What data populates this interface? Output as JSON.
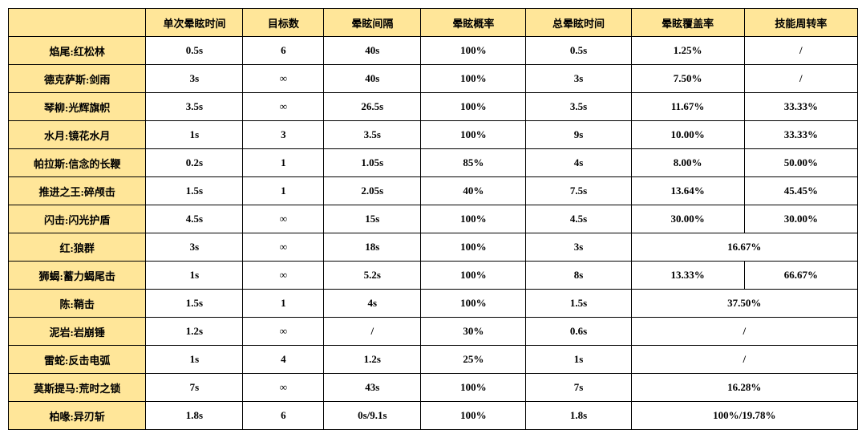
{
  "table": {
    "columns": [
      "",
      "单次晕眩时间",
      "目标数",
      "晕眩间隔",
      "晕眩概率",
      "总晕眩时间",
      "晕眩覆盖率",
      "技能周转率"
    ],
    "rows": [
      {
        "label": "焰尾:红松林",
        "cells": [
          "0.5s",
          "6",
          "40s",
          "100%",
          "0.5s",
          "1.25%",
          "/"
        ]
      },
      {
        "label": "德克萨斯:剑雨",
        "cells": [
          "3s",
          "∞",
          "40s",
          "100%",
          "3s",
          "7.50%",
          "/"
        ]
      },
      {
        "label": "琴柳:光辉旗帜",
        "cells": [
          "3.5s",
          "∞",
          "26.5s",
          "100%",
          "3.5s",
          "11.67%",
          "33.33%"
        ]
      },
      {
        "label": "水月:镜花水月",
        "cells": [
          "1s",
          "3",
          "3.5s",
          "100%",
          "9s",
          "10.00%",
          "33.33%"
        ]
      },
      {
        "label": "帕拉斯:信念的长鞭",
        "cells": [
          "0.2s",
          "1",
          "1.05s",
          "85%",
          "4s",
          "8.00%",
          "50.00%"
        ]
      },
      {
        "label": "推进之王:碎颅击",
        "cells": [
          "1.5s",
          "1",
          "2.05s",
          "40%",
          "7.5s",
          "13.64%",
          "45.45%"
        ]
      },
      {
        "label": "闪击:闪光护盾",
        "cells": [
          "4.5s",
          "∞",
          "15s",
          "100%",
          "4.5s",
          "30.00%",
          "30.00%"
        ]
      },
      {
        "label": "红:狼群",
        "cells": [
          "3s",
          "∞",
          "18s",
          "100%",
          "3s"
        ],
        "merged": "16.67%"
      },
      {
        "label": "狮蝎:蓄力蝎尾击",
        "cells": [
          "1s",
          "∞",
          "5.2s",
          "100%",
          "8s",
          "13.33%",
          "66.67%"
        ]
      },
      {
        "label": "陈:鞘击",
        "cells": [
          "1.5s",
          "1",
          "4s",
          "100%",
          "1.5s"
        ],
        "merged": "37.50%"
      },
      {
        "label": "泥岩:岩崩锤",
        "cells": [
          "1.2s",
          "∞",
          "/",
          "30%",
          "0.6s"
        ],
        "merged": "/"
      },
      {
        "label": "雷蛇:反击电弧",
        "cells": [
          "1s",
          "4",
          "1.2s",
          "25%",
          "1s"
        ],
        "merged": "/"
      },
      {
        "label": "莫斯提马:荒时之锁",
        "cells": [
          "7s",
          "∞",
          "43s",
          "100%",
          "7s"
        ],
        "merged": "16.28%"
      },
      {
        "label": "柏喙:异刃斩",
        "cells": [
          "1.8s",
          "6",
          "0s/9.1s",
          "100%",
          "1.8s"
        ],
        "merged": "100%/19.78%"
      }
    ],
    "colors": {
      "header_bg": "#ffe699",
      "border": "#000000",
      "cell_bg": "#ffffff",
      "text": "#000000"
    },
    "font": {
      "family": "SimSun",
      "size_pt": 10,
      "weight": "bold"
    }
  }
}
